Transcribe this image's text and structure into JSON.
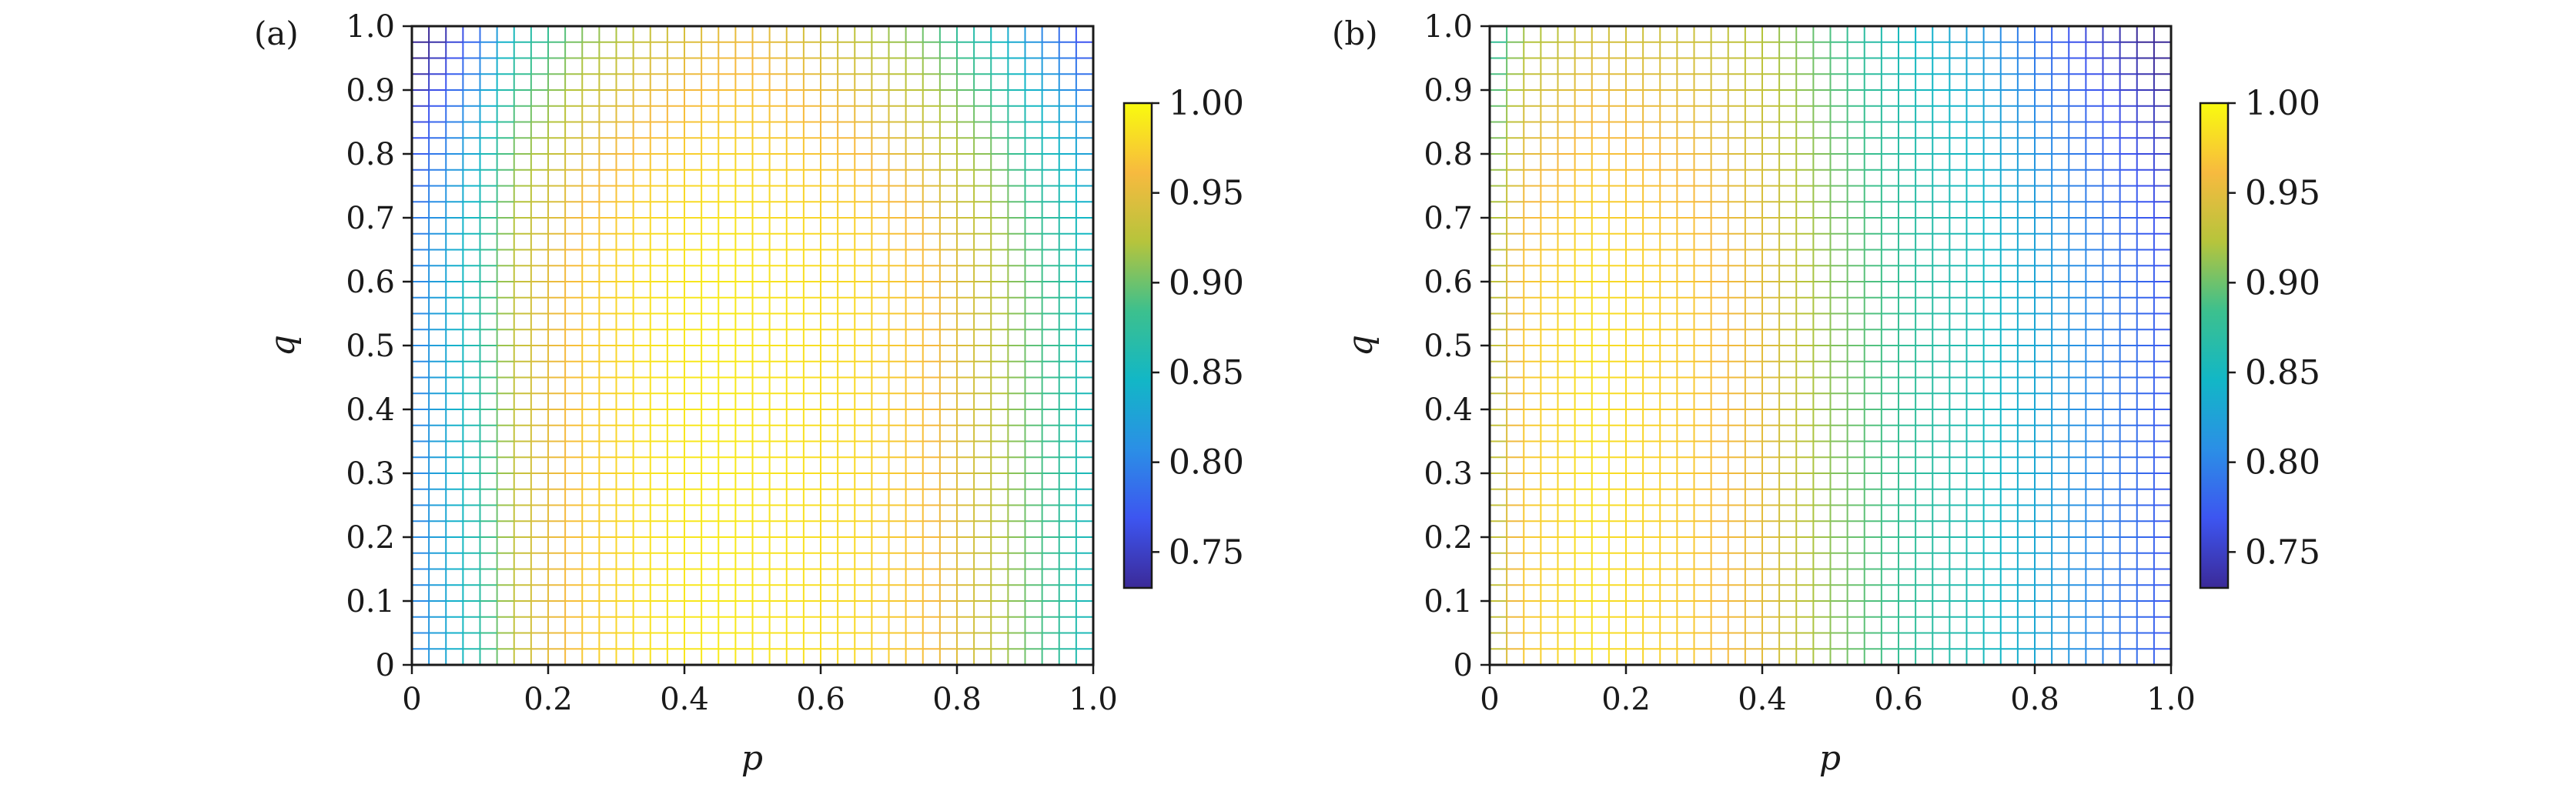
{
  "chart_data": [
    {
      "type": "heatmap",
      "panel_label": "(a)",
      "xlabel": "p",
      "ylabel": "q",
      "xlim": [
        0,
        1
      ],
      "ylim": [
        0,
        1
      ],
      "x_ticks": [
        "0",
        "0.2",
        "0.4",
        "0.6",
        "0.8",
        "1.0"
      ],
      "y_ticks": [
        "0",
        "0.1",
        "0.2",
        "0.3",
        "0.4",
        "0.5",
        "0.6",
        "0.7",
        "0.8",
        "0.9",
        "1.0"
      ],
      "grid_cells": 40,
      "value_profile_p": [
        [
          0.0,
          0.8
        ],
        [
          0.05,
          0.83
        ],
        [
          0.1,
          0.87
        ],
        [
          0.15,
          0.93
        ],
        [
          0.25,
          0.97
        ],
        [
          0.35,
          0.985
        ],
        [
          0.45,
          0.99
        ],
        [
          0.55,
          0.985
        ],
        [
          0.65,
          0.98
        ],
        [
          0.75,
          0.965
        ],
        [
          0.85,
          0.93
        ],
        [
          0.92,
          0.89
        ],
        [
          1.0,
          0.85
        ]
      ],
      "q_drop_start": 0.55,
      "q_drop_max": 0.1,
      "colorbar": {
        "min": 0.73,
        "max": 1.0,
        "ticks": [
          "1.00",
          "0.95",
          "0.90",
          "0.85",
          "0.80",
          "0.75"
        ]
      }
    },
    {
      "type": "heatmap",
      "panel_label": "(b)",
      "xlabel": "p",
      "ylabel": "q",
      "xlim": [
        0,
        1
      ],
      "ylim": [
        0,
        1
      ],
      "x_ticks": [
        "0",
        "0.2",
        "0.4",
        "0.6",
        "0.8",
        "1.0"
      ],
      "y_ticks": [
        "0",
        "0.1",
        "0.2",
        "0.3",
        "0.4",
        "0.5",
        "0.6",
        "0.7",
        "0.8",
        "0.9",
        "1.0"
      ],
      "grid_cells": 40,
      "value_profile_p": [
        [
          0.0,
          0.92
        ],
        [
          0.05,
          0.97
        ],
        [
          0.15,
          0.985
        ],
        [
          0.3,
          0.97
        ],
        [
          0.4,
          0.95
        ],
        [
          0.5,
          0.91
        ],
        [
          0.6,
          0.88
        ],
        [
          0.7,
          0.86
        ],
        [
          0.8,
          0.83
        ],
        [
          0.9,
          0.8
        ],
        [
          1.0,
          0.77
        ]
      ],
      "q_drop_start": 0.5,
      "q_drop_max": 0.06,
      "colorbar": {
        "min": 0.73,
        "max": 1.0,
        "ticks": [
          "1.00",
          "0.95",
          "0.90",
          "0.85",
          "0.80",
          "0.75"
        ]
      }
    }
  ],
  "colors": {
    "colormap": [
      "#3b2a98",
      "#3d55f0",
      "#2b8fe6",
      "#12b7c6",
      "#3cc08e",
      "#b6c43c",
      "#f7ba3f",
      "#f9fb0e"
    ],
    "axis": "#1a1a1a"
  }
}
